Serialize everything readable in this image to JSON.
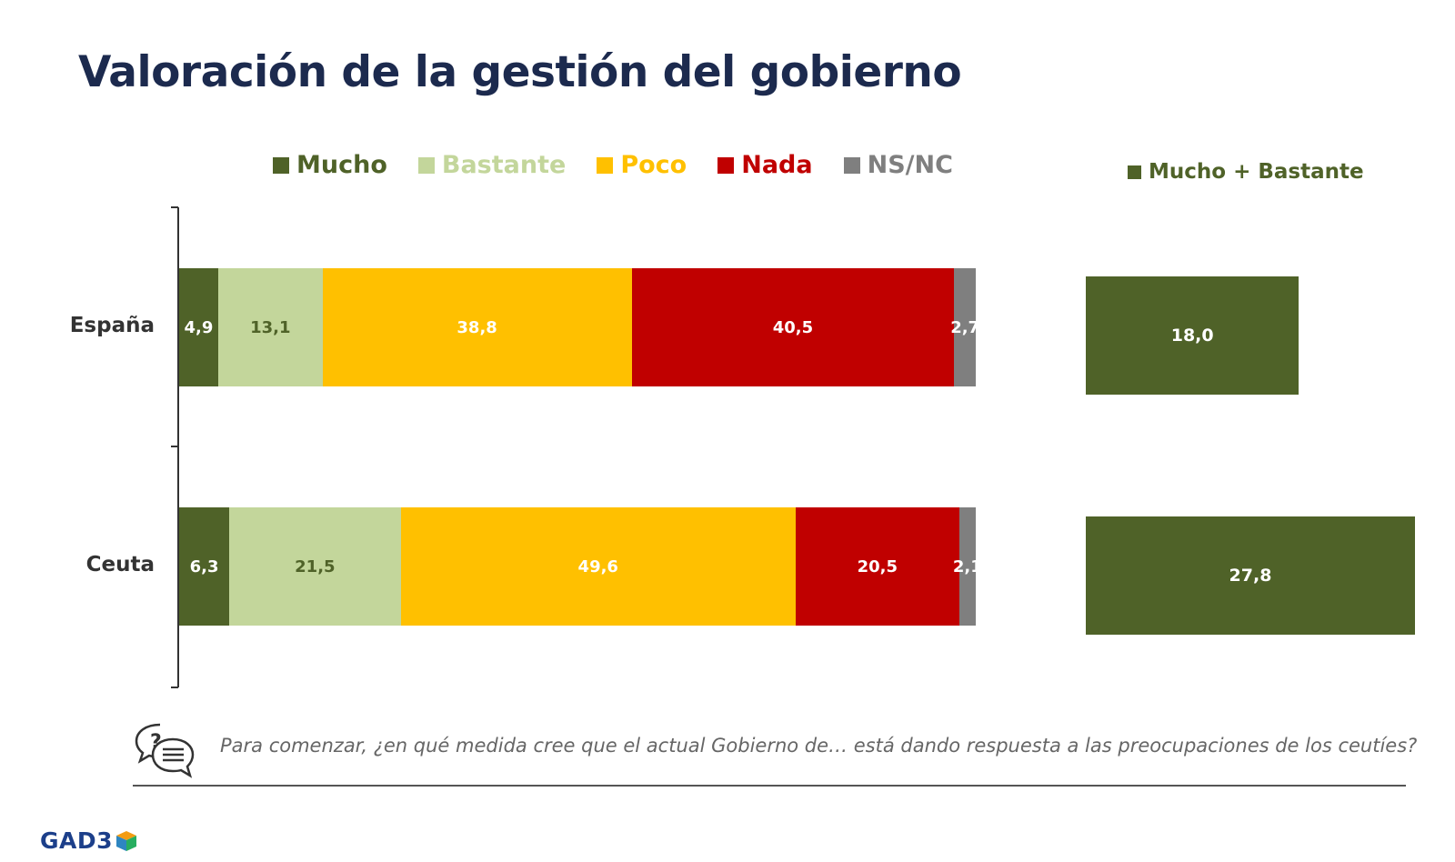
{
  "title": "Valoración de la gestión del gobierno",
  "logo": "GAD3",
  "question": "Para comenzar, ¿en qué medida cree que el actual Gobierno de… está dando respuesta a las preocupaciones de los ceutíes?",
  "colors": {
    "mucho": "#4f6228",
    "bastante": "#c3d69b",
    "poco": "#ffc000",
    "nada": "#c00000",
    "nsnc": "#7f7f7f",
    "title": "#1c2a4e"
  },
  "chart_data": [
    {
      "type": "bar",
      "orientation": "horizontal",
      "stacked": true,
      "categories": [
        "España",
        "Ceuta"
      ],
      "series": [
        {
          "name": "Mucho",
          "values": [
            4.9,
            6.3
          ],
          "labels": [
            "4,9",
            "6,3"
          ]
        },
        {
          "name": "Bastante",
          "values": [
            13.1,
            21.5
          ],
          "labels": [
            "13,1",
            "21,5"
          ]
        },
        {
          "name": "Poco",
          "values": [
            38.8,
            49.6
          ],
          "labels": [
            "38,8",
            "49,6"
          ]
        },
        {
          "name": "Nada",
          "values": [
            40.5,
            20.5
          ],
          "labels": [
            "40,5",
            "20,5"
          ]
        },
        {
          "name": "NS/NC",
          "values": [
            2.7,
            2.1
          ],
          "labels": [
            "2,7",
            "2,1"
          ]
        }
      ],
      "xlim": [
        0,
        100
      ],
      "grid": false,
      "legend": "top"
    },
    {
      "type": "bar",
      "orientation": "horizontal",
      "categories": [
        "España",
        "Ceuta"
      ],
      "series": [
        {
          "name": "Mucho + Bastante",
          "values": [
            18.0,
            27.8
          ],
          "labels": [
            "18,0",
            "27,8"
          ]
        }
      ],
      "xlim": [
        0,
        27.8
      ],
      "grid": false,
      "legend": "top"
    }
  ]
}
